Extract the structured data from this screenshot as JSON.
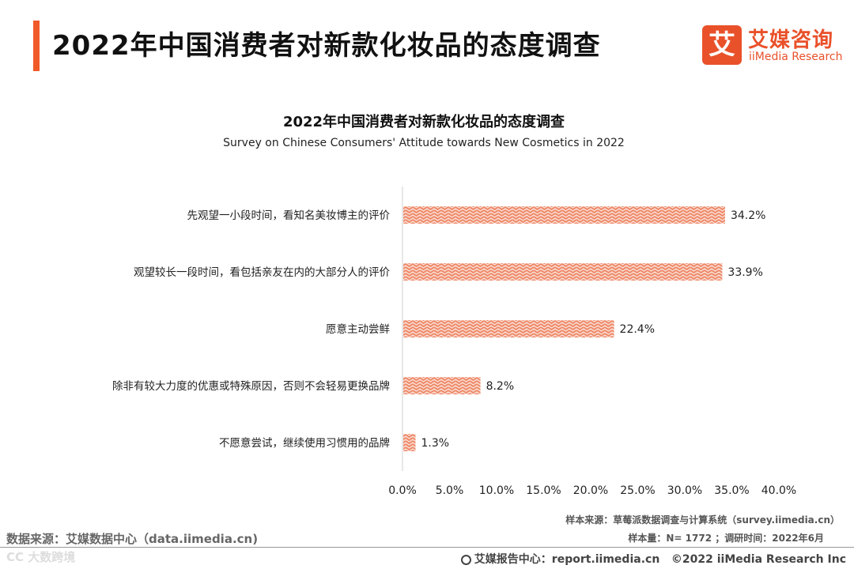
{
  "header": {
    "title": "2022年中国消费者对新款化妆品的态度调查",
    "logo_mark": "艾",
    "logo_cn": "艾媒咨询",
    "logo_en": "iiMedia Research"
  },
  "chart_data": {
    "type": "bar",
    "orientation": "horizontal",
    "title": "2022年中国消费者对新款化妆品的态度调查",
    "subtitle": "Survey on Chinese Consumers' Attitude towards New Cosmetics in 2022",
    "categories": [
      "先观望一小段时间，看知名美妆博主的评价",
      "观望较长一段时间，看包括亲友在内的大部分人的评价",
      "愿意主动尝鲜",
      "除非有较大力度的优惠或特殊原因，否则不会轻易更换品牌",
      "不愿意尝试，继续使用习惯用的品牌"
    ],
    "values": [
      34.2,
      33.9,
      22.4,
      8.2,
      1.3
    ],
    "value_labels": [
      "34.2%",
      "33.9%",
      "22.4%",
      "8.2%",
      "1.3%"
    ],
    "xlim": [
      0,
      40
    ],
    "x_ticks": [
      "0.0%",
      "5.0%",
      "10.0%",
      "15.0%",
      "20.0%",
      "25.0%",
      "30.0%",
      "35.0%",
      "40.0%"
    ],
    "grid": false,
    "bar_color": "#f3a58c",
    "bar_pattern": "zigzag"
  },
  "notes": {
    "sample_source": "样本来源：草莓派数据调查与计算系统（survey.iimedia.cn）",
    "sample_size": "样本量：N= 1772 ；调研时间：2022年6月",
    "data_source": "数据来源：艾媒数据中心（data.iimedia.cn)"
  },
  "footer": {
    "watermark": "CC 大数跨境",
    "report_center": "艾媒报告中心：report.iimedia.cn",
    "copyright": "©2022  iiMedia Research  Inc"
  }
}
